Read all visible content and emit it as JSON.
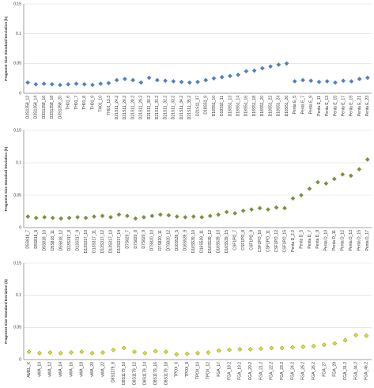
{
  "chart_data": [
    {
      "type": "scatter",
      "y_label": "Fragment Size Standard Deviation (b)",
      "categories": [
        "D3S1358_12",
        "D3S1358_14",
        "D3S1358_16",
        "D3S1358_18",
        "D3S1358_20",
        "TH01_6",
        "TH01_7",
        "TH01_8",
        "TH01_9",
        "TH01_10",
        "TH01_13.3",
        "D21S11_24.2",
        "D21S11_26.2",
        "D21S11_28.2",
        "D21S11_29.2",
        "D21S11_30.2",
        "D21S11_31.2",
        "D21S11_32.2",
        "D21S11_33.2",
        "D21S11_34.2",
        "D21S11_35.2",
        "D21S11_37",
        "D18S51_9",
        "D18S51_10",
        "D18S51_11",
        "D18S51_13",
        "D18S51_14",
        "D18S51_16",
        "D18S51_18",
        "D18S51_20",
        "D18S51_22",
        "D18S51_24",
        "D18S51_26",
        "Penta E_5",
        "Penta E_7",
        "Penta E_9",
        "Penta E_11",
        "Penta E_13",
        "Penta E_15",
        "Penta E_17",
        "Penta E_19",
        "Penta E_21",
        "Penta E_23"
      ],
      "values": [
        0.018,
        0.015,
        0.016,
        0.015,
        0.014,
        0.015,
        0.016,
        0.015,
        0.014,
        0.016,
        0.017,
        0.022,
        0.024,
        0.022,
        0.018,
        0.026,
        0.022,
        0.021,
        0.02,
        0.019,
        0.018,
        0.019,
        0.022,
        0.025,
        0.027,
        0.029,
        0.031,
        0.037,
        0.038,
        0.042,
        0.045,
        0.048,
        0.05,
        0.02,
        0.022,
        0.021,
        0.019,
        0.02,
        0.018,
        0.021,
        0.02,
        0.024,
        0.026
      ],
      "color": "#4f81bd",
      "ylim": [
        0,
        0.15
      ],
      "yticks": [
        0,
        0.05,
        0.1,
        0.15
      ],
      "grid": true
    },
    {
      "type": "scatter",
      "y_label": "Fragment Size Standard Deviation (b)",
      "categories": [
        "D5S818_7",
        "D5S818_9",
        "D5S818_10",
        "D5S818_11",
        "D5S818_12",
        "D13S317_8",
        "D13S317_9",
        "D13S317_10",
        "D13S317_11",
        "D13S317_12",
        "D13S317_13",
        "D13S317_14",
        "D7S820_7",
        "D7S820_8",
        "D7S820_9",
        "D7S820_10",
        "D7S820_11",
        "D7S820_12",
        "D16S539_5",
        "D16S539_9",
        "D16S539_10",
        "D16S539_11",
        "D16S539_12",
        "D16S539_13",
        "D16S539_15",
        "CSF1PO_7",
        "CSF1PO_8",
        "CSF1PO_9",
        "CSF1PO_10",
        "CSF1PO_11",
        "CSF1PO_12",
        "CSF1PO_15",
        "Penta D_2.2",
        "Penta D_5",
        "Penta D_7",
        "Penta D_9",
        "Penta D_10",
        "Penta D_11",
        "Penta D_12",
        "Penta D_13",
        "Penta D_15",
        "Penta D_17"
      ],
      "values": [
        0.017,
        0.015,
        0.016,
        0.015,
        0.014,
        0.015,
        0.016,
        0.015,
        0.017,
        0.018,
        0.016,
        0.02,
        0.018,
        0.014,
        0.016,
        0.018,
        0.02,
        0.019,
        0.017,
        0.016,
        0.017,
        0.016,
        0.018,
        0.02,
        0.024,
        0.022,
        0.026,
        0.028,
        0.03,
        0.028,
        0.031,
        0.03,
        0.045,
        0.05,
        0.06,
        0.07,
        0.068,
        0.075,
        0.082,
        0.08,
        0.09,
        0.105
      ],
      "color": "#77933c",
      "ylim": [
        0,
        0.15
      ],
      "yticks": [
        0,
        0.05,
        0.1,
        0.15
      ],
      "grid": true
    },
    {
      "type": "scatter",
      "y_label": "Fragment Size Standard Deviation (b)",
      "categories": [
        "AMEL_X",
        "vWA_10",
        "vWA_12",
        "vWA_14",
        "vWA_16",
        "vWA_18",
        "vWA_20",
        "vWA_22",
        "D8S1179_8",
        "D8S1179_10",
        "D8S1179_12",
        "D8S1179_14",
        "D8S1179_16",
        "D8S1179_18",
        "TPOX_6",
        "TPOX_8",
        "TPOX_10",
        "TPOX_12",
        "FGA_17",
        "FGA_18.2",
        "FGA_19.2",
        "FGA_20.2",
        "FGA_21.2",
        "FGA_22.2",
        "FGA_23.2",
        "FGA_24.2",
        "FGA_25.2",
        "FGA_26.2",
        "FGA_27",
        "FGA_29",
        "FGA_31.2",
        "FGA_44.2",
        "FGA_46.2"
      ],
      "values": [
        0.012,
        0.01,
        0.011,
        0.01,
        0.011,
        0.012,
        0.01,
        0.011,
        0.015,
        0.018,
        0.012,
        0.01,
        0.013,
        0.012,
        0.008,
        0.009,
        0.01,
        0.011,
        0.014,
        0.015,
        0.016,
        0.016,
        0.017,
        0.018,
        0.018,
        0.019,
        0.02,
        0.021,
        0.023,
        0.025,
        0.03,
        0.038,
        0.037
      ],
      "color": "#e0e020",
      "edge_color": "#6b6b10",
      "ylim": [
        0,
        0.15
      ],
      "yticks": [
        0,
        0.05,
        0.1,
        0.15
      ],
      "grid": true
    }
  ]
}
